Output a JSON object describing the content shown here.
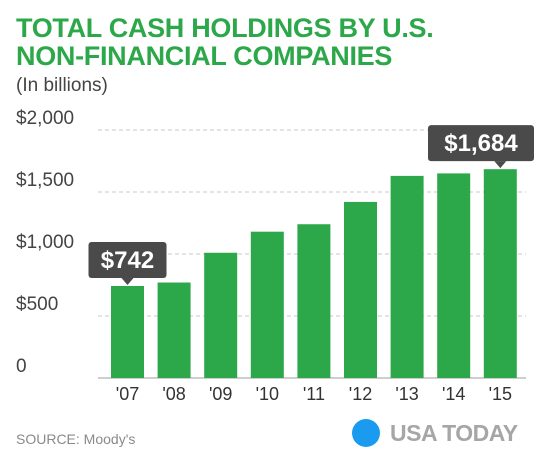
{
  "chart_data": {
    "type": "bar",
    "title_lines": [
      "TOTAL CASH HOLDINGS BY U.S.",
      "NON-FINANCIAL COMPANIES"
    ],
    "subtitle": "(In billions)",
    "categories": [
      "'07",
      "'08",
      "'09",
      "'10",
      "'11",
      "'12",
      "'13",
      "'14",
      "'15"
    ],
    "values": [
      742,
      770,
      1010,
      1180,
      1240,
      1420,
      1630,
      1650,
      1684
    ],
    "y_tick_labels": [
      "0",
      "$500",
      "$1,000",
      "$1,500",
      "$2,000"
    ],
    "y_tick_values": [
      0,
      500,
      1000,
      1500,
      2000
    ],
    "ylim": [
      0,
      2000
    ],
    "grid": "dashed horizontal",
    "callouts": [
      {
        "index": 0,
        "label": "$742"
      },
      {
        "index": 8,
        "label": "$1,684"
      }
    ],
    "colors": {
      "title": "#2ca84a",
      "bar": "#2ca84a",
      "callout": "#4a4a4a",
      "grid": "#c8c8c8"
    }
  },
  "footer": {
    "source": "SOURCE: Moody's",
    "logo_text": "USA TODAY",
    "logo_dot_color": "#1a9bf0"
  }
}
